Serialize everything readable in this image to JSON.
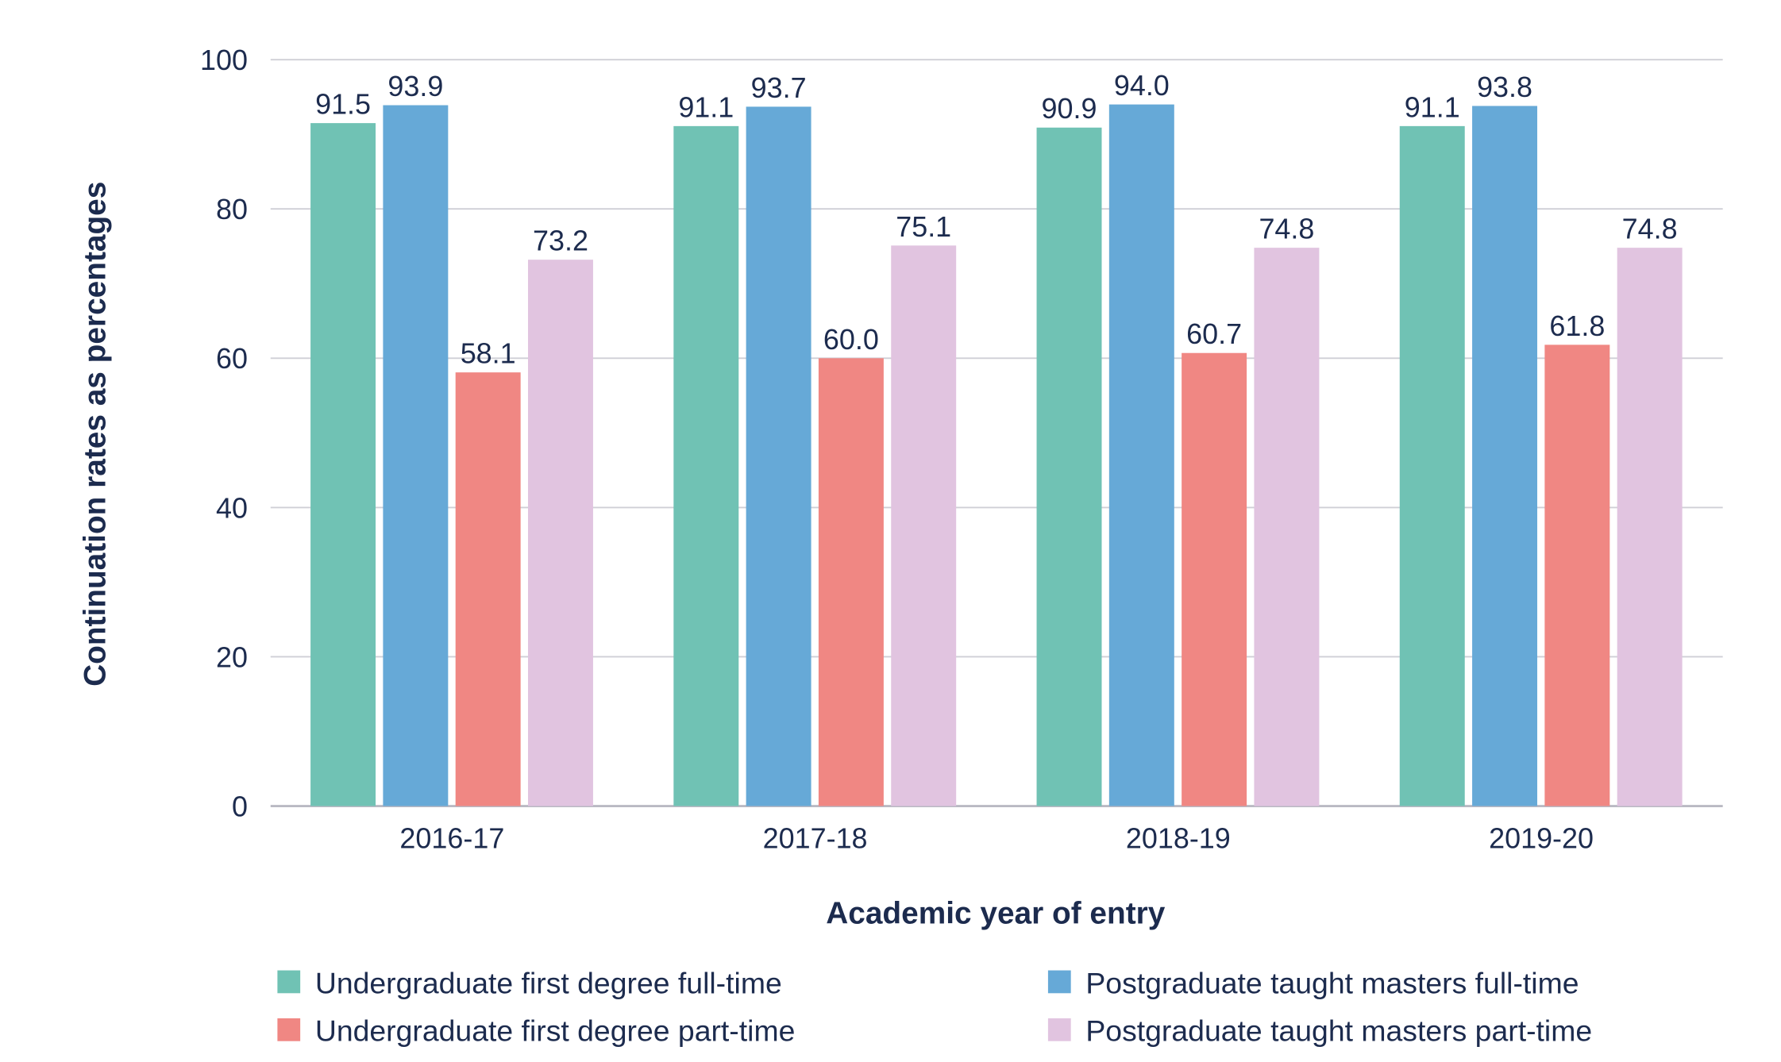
{
  "chart_data": {
    "type": "bar",
    "title": "",
    "xlabel": "Academic year of entry",
    "ylabel": "Continuation rates as percentages",
    "ylim": [
      0,
      100
    ],
    "yticks": [
      0,
      20,
      40,
      60,
      80,
      100
    ],
    "grid": true,
    "legend_placement": "bottom",
    "categories": [
      "2016-17",
      "2017-18",
      "2018-19",
      "2019-20"
    ],
    "series": [
      {
        "name": "Undergraduate first degree full-time",
        "color": "#70c2b4",
        "values": [
          91.5,
          91.1,
          90.9,
          91.1
        ],
        "labels": [
          "91.5",
          "91.1",
          "90.9",
          "91.1"
        ]
      },
      {
        "name": "Postgraduate taught masters full-time",
        "color": "#66a9d7",
        "values": [
          93.9,
          93.7,
          94.0,
          93.8
        ],
        "labels": [
          "93.9",
          "93.7",
          "94.0",
          "93.8"
        ]
      },
      {
        "name": "Undergraduate first degree part-time",
        "color": "#f08783",
        "values": [
          58.1,
          60.0,
          60.7,
          61.8
        ],
        "labels": [
          "58.1",
          "60.0",
          "60.7",
          "61.8"
        ]
      },
      {
        "name": "Postgraduate taught masters part-time",
        "color": "#e1c4e0",
        "values": [
          73.2,
          75.1,
          74.8,
          74.8
        ],
        "labels": [
          "73.2",
          "75.1",
          "74.8",
          "74.8"
        ]
      }
    ]
  }
}
